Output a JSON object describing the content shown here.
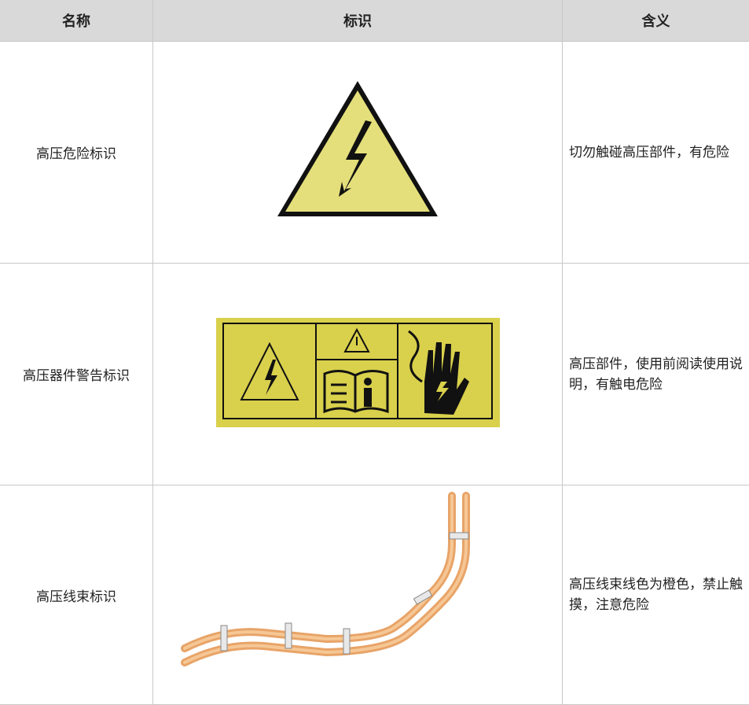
{
  "table": {
    "header": [
      "名称",
      "标识",
      "含义"
    ],
    "rows": [
      {
        "name": "高压危险标识",
        "meaning": "切勿触碰高压部件，有危险"
      },
      {
        "name": "高压器件警告标识",
        "meaning": "高压部件，使用前阅读使用说明，有触电危险"
      },
      {
        "name": "高压线束标识",
        "meaning": "高压线束线色为橙色，禁止触摸，注意危险"
      }
    ]
  }
}
